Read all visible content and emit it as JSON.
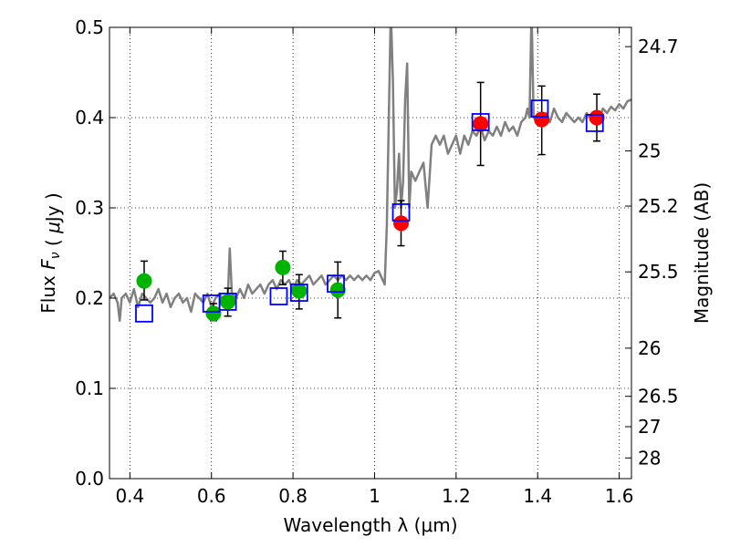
{
  "chart_data": {
    "type": "scatter",
    "xlabel": "Wavelength  λ (μm)",
    "ylabel": "Flux  F_ν  ( μJy )",
    "y2label": "Magnitude (AB)",
    "xlim": [
      0.35,
      1.63
    ],
    "ylim": [
      0.0,
      0.5
    ],
    "grid": true,
    "x_ticks": [
      0.4,
      0.6,
      0.8,
      1.0,
      1.2,
      1.4,
      1.6
    ],
    "x_tick_labels": [
      "0.4",
      "0.6",
      "0.8",
      "1",
      "1.2",
      "1.4",
      "1.6"
    ],
    "y_ticks": [
      0.0,
      0.1,
      0.2,
      0.3,
      0.4,
      0.5
    ],
    "y_tick_labels": [
      "0.0",
      "0.1",
      "0.2",
      "0.3",
      "0.4",
      "0.5"
    ],
    "mag_ticks": [
      24.7,
      25,
      25.2,
      25.5,
      26,
      26.5,
      27,
      28
    ],
    "mag_tick_labels": [
      "24.7",
      "25",
      "25.2",
      "25.5",
      "26",
      "26.5",
      "27",
      "28"
    ],
    "colors": {
      "spectrum": "#808080",
      "green_points": "#00b300",
      "red_points": "#ff0000",
      "model_squares": "#0000ff",
      "errorbars": "#000000"
    },
    "series": [
      {
        "kind": "spectrum",
        "x": [
          0.35,
          0.36,
          0.37,
          0.375,
          0.38,
          0.39,
          0.4,
          0.41,
          0.42,
          0.43,
          0.44,
          0.45,
          0.46,
          0.47,
          0.48,
          0.49,
          0.5,
          0.51,
          0.52,
          0.53,
          0.54,
          0.55,
          0.56,
          0.57,
          0.58,
          0.59,
          0.6,
          0.61,
          0.62,
          0.63,
          0.64,
          0.645,
          0.65,
          0.66,
          0.67,
          0.68,
          0.69,
          0.7,
          0.71,
          0.72,
          0.73,
          0.74,
          0.75,
          0.76,
          0.77,
          0.78,
          0.79,
          0.8,
          0.81,
          0.82,
          0.83,
          0.84,
          0.85,
          0.86,
          0.87,
          0.88,
          0.89,
          0.9,
          0.91,
          0.92,
          0.93,
          0.94,
          0.95,
          0.96,
          0.97,
          0.98,
          0.99,
          1.0,
          1.01,
          1.02,
          1.025,
          1.03,
          1.035,
          1.04,
          1.045,
          1.05,
          1.055,
          1.06,
          1.065,
          1.07,
          1.075,
          1.08,
          1.085,
          1.09,
          1.1,
          1.11,
          1.12,
          1.13,
          1.14,
          1.15,
          1.16,
          1.17,
          1.18,
          1.19,
          1.2,
          1.21,
          1.22,
          1.23,
          1.24,
          1.25,
          1.26,
          1.27,
          1.28,
          1.29,
          1.3,
          1.31,
          1.32,
          1.33,
          1.34,
          1.35,
          1.36,
          1.37,
          1.375,
          1.38,
          1.385,
          1.39,
          1.4,
          1.41,
          1.42,
          1.43,
          1.44,
          1.45,
          1.46,
          1.47,
          1.48,
          1.49,
          1.5,
          1.51,
          1.52,
          1.53,
          1.54,
          1.55,
          1.56,
          1.57,
          1.58,
          1.59,
          1.6,
          1.61,
          1.62,
          1.63
        ],
        "y": [
          0.2,
          0.205,
          0.195,
          0.175,
          0.2,
          0.205,
          0.195,
          0.21,
          0.19,
          0.205,
          0.2,
          0.195,
          0.2,
          0.21,
          0.195,
          0.205,
          0.19,
          0.2,
          0.205,
          0.195,
          0.2,
          0.185,
          0.205,
          0.2,
          0.195,
          0.205,
          0.19,
          0.2,
          0.205,
          0.195,
          0.2,
          0.255,
          0.205,
          0.2,
          0.21,
          0.2,
          0.215,
          0.205,
          0.21,
          0.215,
          0.205,
          0.215,
          0.22,
          0.21,
          0.22,
          0.215,
          0.22,
          0.21,
          0.22,
          0.215,
          0.22,
          0.225,
          0.215,
          0.22,
          0.225,
          0.215,
          0.22,
          0.225,
          0.22,
          0.225,
          0.22,
          0.225,
          0.22,
          0.225,
          0.22,
          0.225,
          0.22,
          0.228,
          0.23,
          0.22,
          0.215,
          0.28,
          0.4,
          0.52,
          0.44,
          0.3,
          0.32,
          0.36,
          0.3,
          0.33,
          0.42,
          0.46,
          0.3,
          0.34,
          0.33,
          0.34,
          0.35,
          0.3,
          0.37,
          0.38,
          0.37,
          0.38,
          0.36,
          0.37,
          0.38,
          0.36,
          0.38,
          0.37,
          0.385,
          0.38,
          0.39,
          0.375,
          0.385,
          0.38,
          0.39,
          0.38,
          0.395,
          0.385,
          0.39,
          0.38,
          0.395,
          0.4,
          0.41,
          0.4,
          0.52,
          0.4,
          0.395,
          0.4,
          0.405,
          0.395,
          0.41,
          0.4,
          0.395,
          0.405,
          0.4,
          0.395,
          0.4,
          0.395,
          0.405,
          0.4,
          0.405,
          0.398,
          0.41,
          0.405,
          0.412,
          0.408,
          0.415,
          0.41,
          0.418,
          0.42
        ]
      },
      {
        "kind": "green_points",
        "x": [
          0.435,
          0.605,
          0.64,
          0.775,
          0.815,
          0.91
        ],
        "y": [
          0.219,
          0.183,
          0.196,
          0.234,
          0.208,
          0.209
        ],
        "yerr_low": [
          0.198,
          0.175,
          0.18,
          0.215,
          0.188,
          0.178
        ],
        "yerr_high": [
          0.241,
          0.194,
          0.211,
          0.252,
          0.226,
          0.24
        ]
      },
      {
        "kind": "red_points",
        "x": [
          1.065,
          1.26,
          1.41,
          1.545
        ],
        "y": [
          0.283,
          0.393,
          0.398,
          0.4
        ],
        "yerr_low": [
          0.258,
          0.347,
          0.359,
          0.374
        ],
        "yerr_high": [
          0.308,
          0.439,
          0.435,
          0.426
        ]
      },
      {
        "kind": "model_squares",
        "x": [
          0.435,
          0.6,
          0.64,
          0.765,
          0.815,
          0.905,
          1.065,
          1.26,
          1.405,
          1.54
        ],
        "y": [
          0.183,
          0.194,
          0.196,
          0.202,
          0.206,
          0.216,
          0.295,
          0.395,
          0.41,
          0.394
        ]
      }
    ]
  }
}
